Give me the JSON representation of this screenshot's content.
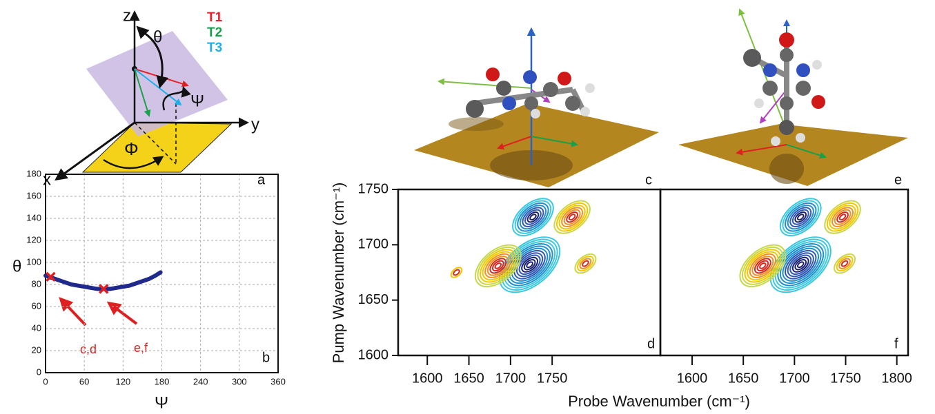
{
  "diagram": {
    "axes": {
      "z": "z",
      "y": "y",
      "x": "x"
    },
    "angles": {
      "theta": "θ",
      "psi": "Ψ",
      "phi": "Φ"
    },
    "legend": [
      {
        "label": "T1",
        "color": "#e8202a"
      },
      {
        "label": "T2",
        "color": "#18a04a"
      },
      {
        "label": "T3",
        "color": "#1ab0e8"
      }
    ],
    "panel_labels": [
      "a",
      "c",
      "e"
    ]
  },
  "shared_axes": {
    "ylabel": "Pump Wavenumber (cm⁻¹)",
    "xlabel": "Probe Wavenumber (cm⁻¹)"
  },
  "chart_data": [
    {
      "type": "line",
      "label": "b",
      "xlabel": "Ψ",
      "ylabel": "θ",
      "xlim": [
        0,
        360
      ],
      "xticks": [
        0,
        60,
        120,
        180,
        240,
        300,
        360
      ],
      "ylim": [
        0,
        180
      ],
      "yticks": [
        0,
        20,
        40,
        60,
        80,
        100,
        120,
        140,
        160,
        180
      ],
      "grid": true,
      "color": "#1f2a8c",
      "x": [
        0,
        10,
        20,
        30,
        40,
        50,
        60,
        70,
        80,
        90,
        100,
        110,
        120,
        130,
        140,
        150,
        160,
        170,
        178
      ],
      "values": [
        88,
        86,
        84,
        82,
        80,
        79,
        78,
        77,
        76,
        76,
        76,
        77,
        78,
        79,
        81,
        83,
        85,
        88,
        91
      ],
      "markers": {
        "x": [
          8,
          90
        ],
        "values": [
          87,
          76
        ],
        "labels": [
          "c,d",
          "e,f"
        ],
        "color": "#e02020"
      }
    },
    {
      "type": "contour",
      "label": "d",
      "xlim": [
        1565,
        1880
      ],
      "xticks": [
        1600,
        1650,
        1700,
        1750
      ],
      "ylim": [
        1600,
        1750
      ],
      "yticks": [
        1600,
        1650,
        1700,
        1750
      ],
      "peaks": {
        "x": [
          1727,
          1774,
          1723,
          1685,
          1790,
          1635
        ],
        "y": [
          1725,
          1725,
          1682,
          1681,
          1683,
          1675
        ],
        "amplitude": [
          -8,
          7,
          -12,
          9,
          4,
          2
        ]
      },
      "colors": {
        "positive": [
          "#c8d84a",
          "#f2c800",
          "#f09020",
          "#d42a20"
        ],
        "negative": [
          "#3cc8e0",
          "#1e90d0",
          "#2f58b4",
          "#1c2070"
        ]
      }
    },
    {
      "type": "contour",
      "label": "f",
      "xlim": [
        1569,
        1811
      ],
      "xticks": [
        1600,
        1650,
        1700,
        1750,
        1800
      ],
      "ylim": [
        1600,
        1750
      ],
      "peaks": {
        "x": [
          1706,
          1747,
          1706,
          1669,
          1749
        ],
        "y": [
          1725,
          1725,
          1682,
          1681,
          1683
        ],
        "amplitude": [
          -8,
          7,
          -12,
          9,
          4
        ]
      },
      "colors": {
        "positive": [
          "#c8d84a",
          "#f2c800",
          "#f09020",
          "#d42a20"
        ],
        "negative": [
          "#3cc8e0",
          "#1e90d0",
          "#2f58b4",
          "#1c2070"
        ]
      }
    }
  ]
}
